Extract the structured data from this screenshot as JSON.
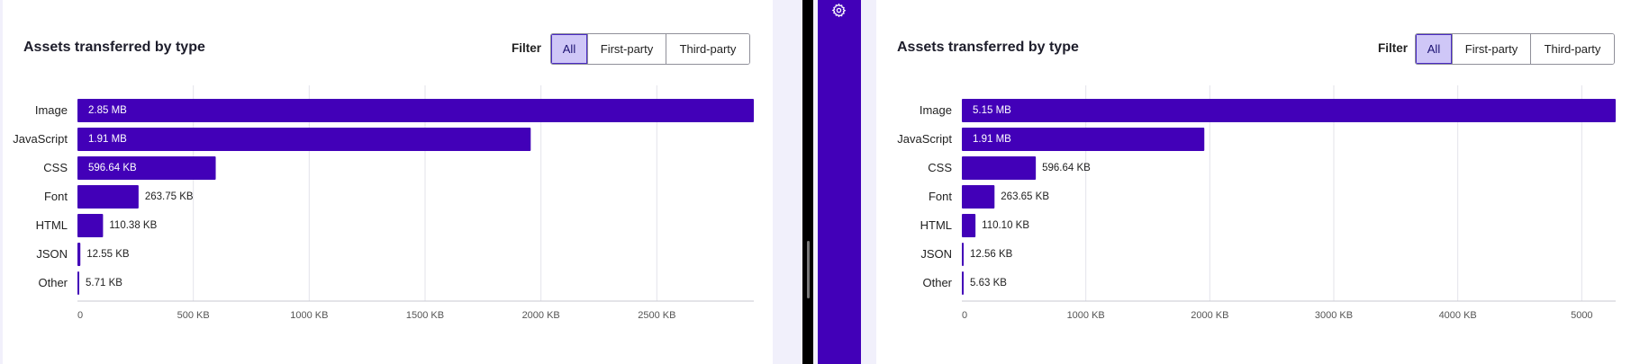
{
  "colors": {
    "bar": "#4200b8",
    "grid": "#e3e3ea",
    "axis": "#c9c9d2",
    "active_filter_bg": "#cfc7f7"
  },
  "icons": {
    "settings": "gear-icon"
  },
  "panels": [
    {
      "title": "Assets transferred by type",
      "filter": {
        "label": "Filter",
        "options": [
          "All",
          "First-party",
          "Third-party"
        ],
        "selected": "All"
      }
    },
    {
      "title": "Assets transferred by type",
      "filter": {
        "label": "Filter",
        "options": [
          "All",
          "First-party",
          "Third-party"
        ],
        "selected": "All"
      }
    }
  ],
  "chart_data": [
    {
      "type": "bar",
      "orientation": "horizontal",
      "categories": [
        "Image",
        "JavaScript",
        "CSS",
        "Font",
        "HTML",
        "JSON",
        "Other"
      ],
      "values": [
        2918.4,
        1955.8,
        596.64,
        263.75,
        110.38,
        12.55,
        5.71
      ],
      "value_labels": [
        "2.85 MB",
        "1.91 MB",
        "596.64 KB",
        "263.75 KB",
        "110.38 KB",
        "12.55 KB",
        "5.71 KB"
      ],
      "xlim": [
        0,
        2918.4
      ],
      "xticks": [
        0,
        500,
        1000,
        1500,
        2000,
        2500
      ],
      "xtick_labels": [
        "0",
        "500 KB",
        "1000 KB",
        "1500 KB",
        "2000 KB",
        "2500 KB"
      ],
      "grid": true
    },
    {
      "type": "bar",
      "orientation": "horizontal",
      "categories": [
        "Image",
        "JavaScript",
        "CSS",
        "Font",
        "HTML",
        "JSON",
        "Other"
      ],
      "values": [
        5273.6,
        1955.8,
        596.64,
        263.65,
        110.1,
        12.56,
        5.63
      ],
      "value_labels": [
        "5.15 MB",
        "1.91 MB",
        "596.64 KB",
        "263.65 KB",
        "110.10 KB",
        "12.56 KB",
        "5.63 KB"
      ],
      "xlim": [
        0,
        5273.6
      ],
      "xticks": [
        0,
        1000,
        2000,
        3000,
        4000,
        5000
      ],
      "xtick_labels": [
        "0",
        "1000 KB",
        "2000 KB",
        "3000 KB",
        "4000 KB",
        "5000"
      ],
      "grid": true
    }
  ]
}
